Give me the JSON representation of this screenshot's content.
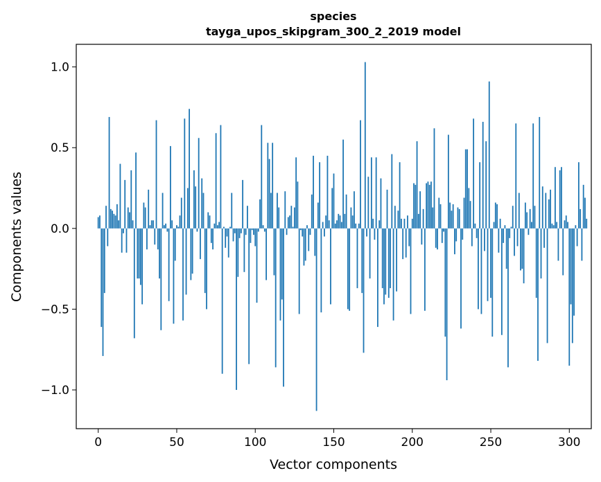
{
  "chart_data": {
    "type": "bar",
    "title": "species",
    "subtitle": "tayga_upos_skipgram_300_2_2019 model",
    "xlabel": "Vector components",
    "ylabel": "Components values",
    "xlim": [
      -14,
      314
    ],
    "ylim": [
      -1.24,
      1.14
    ],
    "xticks": [
      0,
      50,
      100,
      150,
      200,
      250,
      300
    ],
    "yticks": [
      -1.0,
      -0.5,
      0.0,
      0.5,
      1.0
    ],
    "ytick_labels": [
      "−1.0",
      "−0.5",
      "0.0",
      "0.5",
      "1.0"
    ],
    "bar_color": "#1f77b4",
    "grid": false,
    "legend": "none",
    "values": [
      0.07,
      0.08,
      -0.61,
      -0.79,
      -0.4,
      0.14,
      -0.11,
      0.69,
      0.12,
      0.11,
      0.09,
      0.08,
      0.15,
      0.05,
      0.4,
      -0.15,
      -0.03,
      0.3,
      -0.15,
      0.13,
      0.1,
      0.36,
      0.05,
      -0.68,
      0.47,
      -0.31,
      -0.31,
      -0.35,
      -0.47,
      0.16,
      0.13,
      -0.13,
      0.24,
      0.02,
      0.05,
      0.05,
      -0.1,
      0.67,
      -0.13,
      -0.31,
      -0.63,
      0.22,
      0.02,
      0.03,
      -0.02,
      -0.45,
      0.51,
      0.05,
      -0.59,
      -0.2,
      0.02,
      0.01,
      0.08,
      0.19,
      -0.57,
      0.68,
      -0.41,
      0.25,
      0.74,
      -0.32,
      -0.28,
      0.36,
      0.26,
      -0.02,
      0.56,
      -0.19,
      0.31,
      0.22,
      -0.4,
      -0.5,
      0.1,
      0.08,
      -0.09,
      -0.13,
      0.03,
      0.59,
      0.02,
      0.04,
      0.64,
      -0.9,
      0.01,
      -0.12,
      -0.05,
      -0.18,
      0.01,
      0.22,
      -0.08,
      -0.03,
      -1.0,
      -0.3,
      -0.06,
      -0.03,
      0.3,
      -0.27,
      -0.04,
      0.14,
      -0.84,
      -0.09,
      -0.01,
      -0.04,
      -0.11,
      -0.46,
      -0.02,
      0.18,
      0.64,
      0.02,
      -0.02,
      -0.32,
      0.53,
      0.43,
      0.22,
      0.53,
      -0.29,
      -0.86,
      0.22,
      0.13,
      -0.57,
      -0.44,
      -0.98,
      0.23,
      -0.04,
      0.07,
      0.08,
      0.14,
      0.01,
      0.13,
      0.44,
      0.29,
      -0.53,
      -0.01,
      -0.05,
      -0.23,
      -0.2,
      0.02,
      -0.14,
      -0.04,
      0.21,
      0.45,
      -0.17,
      -1.13,
      0.16,
      0.41,
      -0.52,
      0.04,
      -0.05,
      0.08,
      0.45,
      0.05,
      -0.47,
      0.25,
      0.34,
      0.03,
      0.05,
      0.09,
      0.08,
      0.04,
      0.55,
      0.09,
      0.21,
      -0.5,
      -0.51,
      0.13,
      0.08,
      0.23,
      0.03,
      -0.37,
      0.03,
      0.67,
      -0.4,
      -0.77,
      1.03,
      -0.05,
      0.32,
      -0.31,
      0.44,
      0.06,
      -0.07,
      0.44,
      -0.61,
      0.05,
      0.31,
      -0.37,
      -0.47,
      -0.41,
      0.24,
      -0.43,
      -0.37,
      0.46,
      -0.57,
      0.14,
      -0.39,
      0.11,
      0.41,
      0.06,
      -0.19,
      0.06,
      -0.18,
      0.08,
      -0.11,
      -0.53,
      0.06,
      0.28,
      0.27,
      0.54,
      0.09,
      0.23,
      -0.1,
      0.12,
      -0.51,
      0.28,
      0.29,
      0.27,
      0.29,
      0.13,
      0.62,
      -0.12,
      -0.13,
      0.19,
      0.15,
      -0.09,
      -0.02,
      -0.67,
      -0.94,
      0.58,
      0.16,
      0.11,
      0.15,
      -0.16,
      -0.08,
      0.13,
      0.12,
      -0.62,
      -0.07,
      0.19,
      0.49,
      0.49,
      0.25,
      0.17,
      -0.11,
      0.68,
      0.03,
      -0.06,
      -0.5,
      0.41,
      -0.53,
      0.66,
      -0.14,
      0.54,
      -0.45,
      0.91,
      -0.43,
      -0.67,
      0.04,
      0.16,
      0.15,
      -0.15,
      0.06,
      -0.66,
      -0.09,
      0.02,
      -0.25,
      -0.86,
      -0.06,
      0.01,
      0.14,
      -0.17,
      0.65,
      -0.11,
      0.22,
      -0.26,
      -0.25,
      -0.34,
      0.16,
      0.1,
      -0.04,
      0.12,
      0.04,
      0.65,
      0.14,
      -0.43,
      -0.82,
      0.69,
      -0.31,
      0.26,
      -0.12,
      0.22,
      -0.71,
      0.18,
      0.24,
      0.03,
      0.02,
      0.38,
      0.04,
      -0.2,
      0.36,
      0.38,
      -0.29,
      0.05,
      0.08,
      0.04,
      -0.85,
      -0.47,
      -0.71,
      -0.54,
      0.02,
      -0.11,
      0.41,
      0.12,
      -0.2,
      0.27,
      0.19,
      0.06
    ]
  }
}
